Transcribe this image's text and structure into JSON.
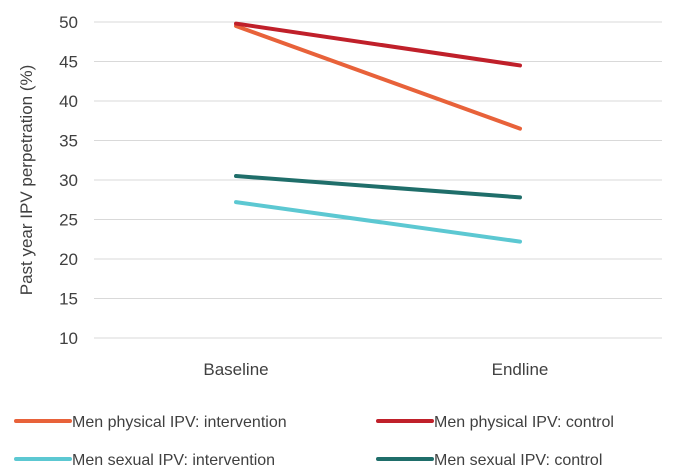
{
  "chart_data": {
    "type": "line",
    "title": "",
    "xlabel": "",
    "ylabel": "Past year IPV perpetration (%)",
    "categories": [
      "Baseline",
      "Endline"
    ],
    "ylim": [
      10,
      50
    ],
    "yticks": [
      10,
      15,
      20,
      25,
      30,
      35,
      40,
      45,
      50
    ],
    "grid": true,
    "legend_position": "bottom",
    "series": [
      {
        "name": "Men physical IPV: intervention",
        "values": [
          49.5,
          36.5
        ],
        "color": "#e8623a"
      },
      {
        "name": "Men physical IPV: control",
        "values": [
          49.8,
          44.5
        ],
        "color": "#c0202a"
      },
      {
        "name": "Men sexual IPV: intervention",
        "values": [
          27.2,
          22.2
        ],
        "color": "#5cc8d2"
      },
      {
        "name": "Men sexual IPV: control",
        "values": [
          30.5,
          27.8
        ],
        "color": "#1f6e6a"
      }
    ]
  }
}
